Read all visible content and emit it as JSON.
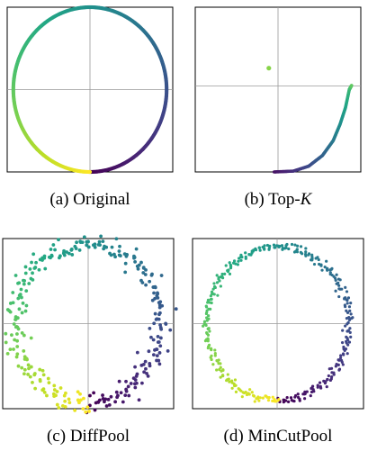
{
  "figure": {
    "panels": [
      {
        "caption_letter": "(a)",
        "caption_name": "Original",
        "chart_data": {
          "type": "scatter",
          "shape": "ring",
          "radius": 1.0,
          "theta_start_deg": -90,
          "theta_end_deg": 270,
          "n_points": 400,
          "noise": 0.0,
          "xlim": [
            -1.08,
            1.08
          ],
          "ylim": [
            -1.0,
            1.0
          ],
          "grid": "crosshair at origin",
          "colormap": "viridis",
          "color_by": "angle"
        }
      },
      {
        "caption_letter": "(b)",
        "caption_name": "Top-",
        "caption_var": "K",
        "chart_data": {
          "type": "scatter",
          "shape": "arc",
          "xlim": [
            -1.08,
            1.08
          ],
          "ylim": [
            -1.0,
            1.0
          ],
          "grid": "crosshair at origin",
          "colormap": "viridis",
          "arc": [
            [
              -0.05,
              -1.0
            ],
            [
              0.2,
              -0.99
            ],
            [
              0.4,
              -0.93
            ],
            [
              0.58,
              -0.8
            ],
            [
              0.72,
              -0.62
            ],
            [
              0.81,
              -0.42
            ],
            [
              0.88,
              -0.22
            ],
            [
              0.93,
              0.0
            ],
            [
              0.96,
              0.05
            ]
          ],
          "arc_color_range": [
            0.05,
            0.75
          ],
          "isolated_point": {
            "x": -0.12,
            "y": 0.26,
            "t": 0.82
          }
        }
      },
      {
        "caption_letter": "(c)",
        "caption_name": "DiffPool",
        "chart_data": {
          "type": "scatter",
          "shape": "ring",
          "radius": 0.93,
          "theta_start_deg": -90,
          "theta_end_deg": 270,
          "n_points": 300,
          "noise": 0.06,
          "xlim": [
            -1.08,
            1.08
          ],
          "ylim": [
            -1.0,
            1.0
          ],
          "grid": "crosshair at origin",
          "colormap": "viridis",
          "color_by": "angle"
        }
      },
      {
        "caption_letter": "(d)",
        "caption_name": "MinCutPool",
        "chart_data": {
          "type": "scatter",
          "shape": "ring",
          "radius": 0.9,
          "theta_start_deg": -90,
          "theta_end_deg": 270,
          "n_points": 350,
          "noise": 0.025,
          "xlim": [
            -1.08,
            1.08
          ],
          "ylim": [
            -1.0,
            1.0
          ],
          "grid": "crosshair at origin",
          "colormap": "viridis",
          "color_by": "angle"
        }
      }
    ]
  }
}
